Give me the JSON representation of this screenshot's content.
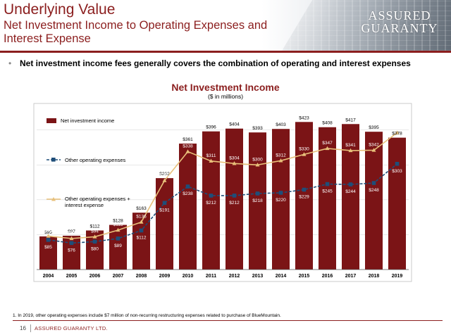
{
  "header": {
    "title": "Underlying Value",
    "subtitle": "Net Investment Income to Operating Expenses and Interest Expense",
    "logo_line1": "ASSURED",
    "logo_line2": "GUARANTY",
    "brand_color": "#8b1e1e"
  },
  "bullet": "Net investment income fees generally covers the combination of operating and interest expenses",
  "footer": {
    "footnote": "1.    In 2019, other operating expenses include $7 million of non-recurring restructuring expenses related to purchase of BlueMountain.",
    "page_number": "16",
    "company": "ASSURED GUARANTY LTD."
  },
  "chart_data": {
    "type": "bar",
    "title": "Net Investment Income",
    "subtitle": "($ in millions)",
    "categories": [
      "2004",
      "2005",
      "2006",
      "2007",
      "2008",
      "2009",
      "2010",
      "2011",
      "2012",
      "2013",
      "2014",
      "2015",
      "2016",
      "2017",
      "2018",
      "2019"
    ],
    "series": [
      {
        "name": "Net investment income",
        "kind": "bar",
        "color": "#7b1416",
        "values": [
          95,
          97,
          112,
          128,
          163,
          262,
          361,
          396,
          404,
          393,
          403,
          423,
          408,
          417,
          395,
          378
        ]
      },
      {
        "name": "Other operating expenses",
        "kind": "line",
        "color": "#1f4e79",
        "values": [
          85,
          76,
          80,
          89,
          112,
          191,
          238,
          212,
          212,
          218,
          220,
          229,
          245,
          244,
          248,
          303
        ]
      },
      {
        "name": "Other operating expenses + interest expense",
        "kind": "line",
        "color": "#e8c07a",
        "values": [
          96,
          89,
          94,
          113,
          136,
          255,
          338,
          311,
          304,
          300,
          312,
          330,
          347,
          341,
          342,
          392
        ]
      }
    ],
    "ylim": [
      0,
      470
    ],
    "legend_position": "left",
    "grid": true
  }
}
